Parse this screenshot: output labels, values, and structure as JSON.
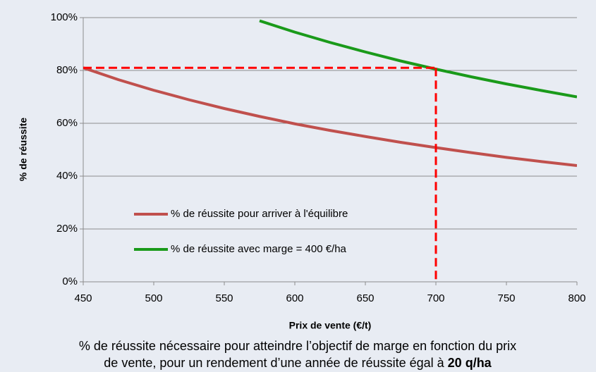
{
  "chart_data": {
    "type": "line",
    "x": [
      450,
      475,
      500,
      525,
      550,
      575,
      600,
      625,
      650,
      675,
      700,
      725,
      750,
      775,
      800
    ],
    "series": [
      {
        "name": "% de réussite pour arriver à l'équilibre",
        "color": "#c0504d",
        "values": [
          81,
          76.5,
          72.5,
          68.9,
          65.6,
          62.6,
          59.8,
          57.3,
          55,
          52.8,
          50.8,
          48.9,
          47.1,
          45.5,
          44
        ]
      },
      {
        "name": "% de réussite avec marge = 400 €/ha",
        "color": "#1a9a1a",
        "values": [
          null,
          null,
          null,
          null,
          null,
          98.8,
          94.5,
          90.6,
          87,
          83.6,
          80.5,
          77.6,
          74.9,
          72.4,
          70
        ]
      }
    ],
    "reference": {
      "x": 700,
      "y": 81,
      "color": "#ff0000"
    },
    "xlim": [
      450,
      800
    ],
    "xticks": [
      450,
      500,
      550,
      600,
      650,
      700,
      750,
      800
    ],
    "ylim": [
      0,
      100
    ],
    "yticks": [
      {
        "value": 0,
        "label": "0%"
      },
      {
        "value": 20,
        "label": "20%"
      },
      {
        "value": 40,
        "label": "40%"
      },
      {
        "value": 60,
        "label": "60%"
      },
      {
        "value": 80,
        "label": "80%"
      },
      {
        "value": 100,
        "label": "100%"
      }
    ],
    "grid": true,
    "legend": "lower-left",
    "xlabel": "Prix de vente (€/t)",
    "ylabel": "% de réussite",
    "caption": [
      "% de réussite nécessaire pour atteindre l’objectif de marge en fonction du prix",
      "de vente, pour un rendement d’une année de réussite égal à",
      "20 q/ha"
    ]
  }
}
